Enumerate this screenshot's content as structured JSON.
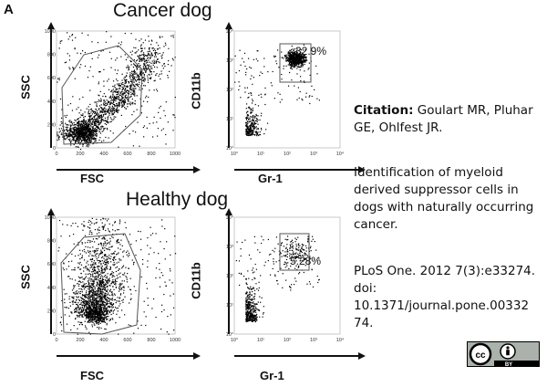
{
  "figure": {
    "panel_letter": "A",
    "top": {
      "title": "Cancer dog",
      "scatter": {
        "ylabel": "SSC",
        "xlabel": "FSC",
        "xticks": [
          "0",
          "200",
          "400",
          "600",
          "800",
          "1000"
        ],
        "yticks": [
          "0",
          "200",
          "400",
          "600",
          "800",
          "1000"
        ]
      },
      "gate": {
        "ylabel": "CD11b",
        "xlabel": "Gr-1",
        "percent": "32.9%",
        "xticks": [
          "10°",
          "10¹",
          "10²",
          "10³",
          "10⁴"
        ],
        "yticks": [
          "10°",
          "10¹",
          "10²",
          "10³",
          "10⁴"
        ]
      }
    },
    "bottom": {
      "title": "Healthy dog",
      "scatter": {
        "ylabel": "SSC",
        "xlabel": "FSC",
        "xticks": [
          "0",
          "200",
          "400",
          "600",
          "800",
          "1000"
        ],
        "yticks": [
          "0",
          "200",
          "400",
          "600",
          "800",
          "1000"
        ]
      },
      "gate": {
        "ylabel": "CD11b",
        "xlabel": "Gr-1",
        "percent": "5.28%",
        "xticks": [
          "10°",
          "10¹",
          "10²",
          "10³",
          "10⁴"
        ],
        "yticks": [
          "10°",
          "10¹",
          "10²",
          "10³",
          "10⁴"
        ]
      }
    }
  },
  "citation": {
    "label": "Citation:",
    "authors": " Goulart MR, Pluhar GE, Ohlfest JR.",
    "title": "Identification of myeloid derived suppressor cells in dogs with naturally occurring cancer.",
    "journal": "PLoS One. 2012 7(3):e33274.",
    "doi_label": "doi:",
    "doi": "10.1371/journal.pone.0033274."
  },
  "license": {
    "badge_icon": "cc-by-icon",
    "cc_text": "cc",
    "by_text": "BY"
  },
  "colors": {
    "ink": "#111111",
    "gate_line": "#555555",
    "dots": "#000000"
  }
}
